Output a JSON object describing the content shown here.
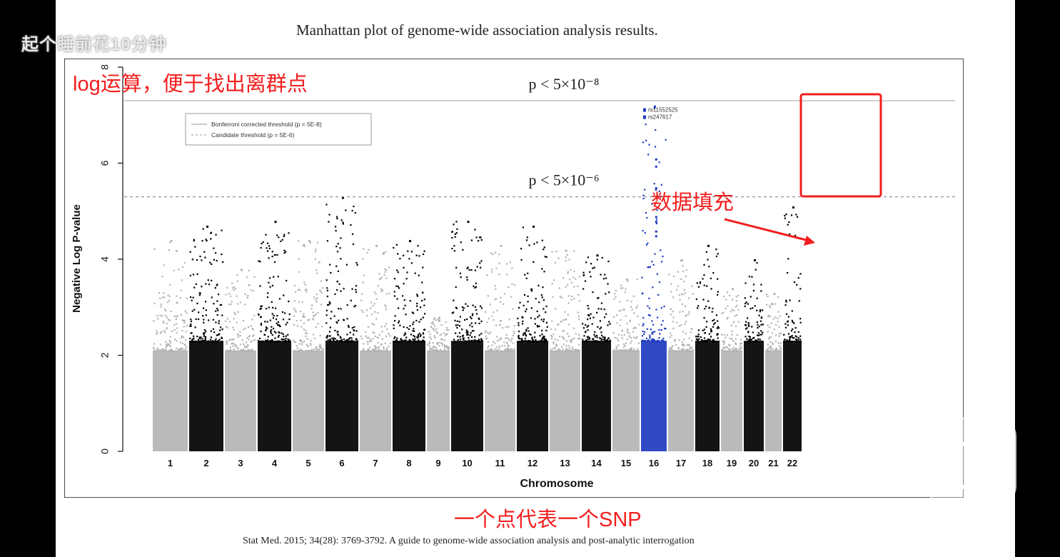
{
  "watermark": "起个睡前花10分钟",
  "figure_title": "Manhattan plot of genome-wide association analysis results.",
  "citation": "Stat Med. 2015; 34(28): 3769-3792. A guide to genome-wide association analysis and post-analytic interrogation",
  "annotations": {
    "log_note": "log运算，便于找出离群点",
    "data_fill": "数据填充",
    "one_point": "一个点代表一个SNP"
  },
  "colors": {
    "annotation_red": "#f31e1e",
    "odd_chrom": "#b4b4b4",
    "even_chrom": "#000000",
    "highlight": "#1f3bbf"
  },
  "chart_data": {
    "type": "scatter",
    "title": "",
    "xlabel": "Chromosome",
    "ylabel": "Negative Log P-value",
    "ylim": [
      0,
      8
    ],
    "y_ticks": [
      0,
      2,
      4,
      6,
      8
    ],
    "categories": [
      "1",
      "2",
      "3",
      "4",
      "5",
      "6",
      "7",
      "8",
      "9",
      "10",
      "11",
      "12",
      "13",
      "14",
      "15",
      "16",
      "17",
      "18",
      "19",
      "20",
      "21",
      "22"
    ],
    "max_neg_log_p": [
      4.4,
      4.7,
      3.8,
      4.8,
      4.4,
      5.3,
      4.3,
      4.4,
      2.8,
      4.8,
      4.3,
      4.7,
      4.2,
      4.1,
      3.6,
      7.2,
      4.0,
      4.3,
      3.4,
      4.0,
      3.3,
      5.1
    ],
    "highlight_chromosome": "16",
    "threshold_lines": [
      {
        "label": "Bonferroni corrected threshold (p = 5E-8)",
        "y": 7.3,
        "style": "solid",
        "annotation": "p < 5×10⁻⁸"
      },
      {
        "label": "Candidate threshold (p = 5E-6)",
        "y": 5.3,
        "style": "dashed",
        "annotation": "p < 5×10⁻⁶"
      }
    ],
    "top_snps": [
      {
        "label": "rs11552525",
        "chromosome": "16",
        "y": 7.1
      },
      {
        "label": "rs247617",
        "chromosome": "16",
        "y": 6.95
      }
    ],
    "legend_position": "top-left",
    "grid": false
  }
}
